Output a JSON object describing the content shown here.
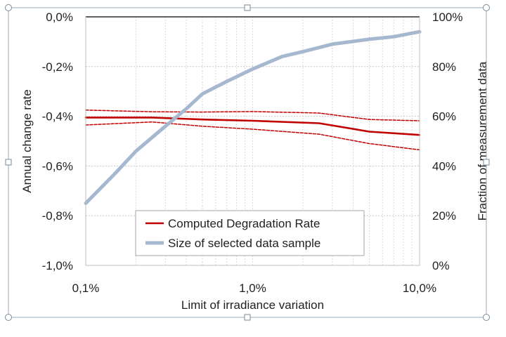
{
  "chart_data": {
    "type": "line",
    "xlabel": "Limit of irradiance variation",
    "ylabel_left": "Annual change rate",
    "ylabel_right": "Fraction of measurement data",
    "x_scale": "log",
    "xlim": [
      0.1,
      10.0
    ],
    "x_ticks": [
      0.1,
      1.0,
      10.0
    ],
    "x_tick_labels": [
      "0,1%",
      "1,0%",
      "10,0%"
    ],
    "ylim_left": [
      -1.0,
      0.0
    ],
    "y_left_ticks": [
      0.0,
      -0.2,
      -0.4,
      -0.6,
      -0.8,
      -1.0
    ],
    "y_left_tick_labels": [
      "0,0%",
      "-0,2%",
      "-0,4%",
      "-0,6%",
      "-0,8%",
      "-1,0%"
    ],
    "ylim_right": [
      0,
      100
    ],
    "y_right_ticks": [
      100,
      80,
      60,
      40,
      20,
      0
    ],
    "y_right_tick_labels": [
      "100%",
      "80%",
      "60%",
      "40%",
      "20%",
      "0%"
    ],
    "grid": true,
    "legend_position": "bottom-center",
    "legend": [
      "Computed Degradation Rate",
      "Size of selected data sample"
    ],
    "series": [
      {
        "name": "Computed Degradation Rate",
        "axis": "left",
        "color": "#c00000",
        "x": [
          0.1,
          0.25,
          0.5,
          1.0,
          2.5,
          5.0,
          10.0
        ],
        "values": [
          -0.405,
          -0.405,
          -0.413,
          -0.418,
          -0.428,
          -0.462,
          -0.475
        ]
      },
      {
        "name": "",
        "axis": "left",
        "style": "dashed",
        "color": "#c00000",
        "x": [
          0.1,
          0.25,
          0.5,
          1.0,
          2.5,
          5.0,
          10.0
        ],
        "values": [
          -0.375,
          -0.382,
          -0.383,
          -0.381,
          -0.387,
          -0.413,
          -0.418
        ]
      },
      {
        "name": "",
        "axis": "left",
        "style": "dashed",
        "color": "#c00000",
        "x": [
          0.1,
          0.25,
          0.5,
          1.0,
          2.5,
          5.0,
          10.0
        ],
        "values": [
          -0.435,
          -0.423,
          -0.44,
          -0.452,
          -0.472,
          -0.51,
          -0.535
        ]
      },
      {
        "name": "Size of selected data sample",
        "axis": "right",
        "color": "#a6b8d0",
        "x": [
          0.1,
          0.15,
          0.2,
          0.3,
          0.4,
          0.5,
          0.7,
          1.0,
          1.5,
          2.0,
          3.0,
          5.0,
          7.0,
          10.0
        ],
        "values": [
          25,
          37,
          46,
          56,
          63,
          69,
          74,
          79,
          84,
          86,
          89,
          91,
          92,
          94
        ]
      }
    ]
  }
}
